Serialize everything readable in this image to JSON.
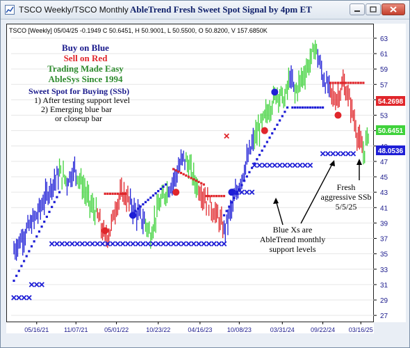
{
  "window": {
    "title": "TSCO Weekly/TSCO Monthly",
    "chart_title": "AbleTrend Fresh Sweet Spot Signal by 4pm ET"
  },
  "info_line": "TSCO [Weekly] 05/04/25 -0.1949 C 50.6451, H 50.9001, L 50.5500, O 50.8200, V 157.6850K",
  "legend": {
    "buy": "Buy on Blue",
    "sell": "Sell on Red",
    "easy": "Trading Made Easy",
    "since": "AbleSys Since 1994"
  },
  "ssb": {
    "title": "Sweet Spot for Buying (SSb)",
    "line1": "1) After testing support level",
    "line2": "2) Emerging blue bar",
    "line3": "or closeup bar"
  },
  "annotations": {
    "blue_x_1": "Blue Xs are",
    "blue_x_2": "AbleTrend monthly",
    "blue_x_3": "support levels",
    "fresh_1": "Fresh",
    "fresh_2": "aggressive SSb",
    "fresh_3": "5/5/25"
  },
  "price_labels": {
    "red": "54.2698",
    "green": "50.6451",
    "blue": "48.0536"
  },
  "colors": {
    "blue": "#1f1fd6",
    "red": "#e0262b",
    "green": "#3fd23b",
    "navy_text": "#1a1a8c",
    "dark_green_text": "#2e8b2e"
  },
  "chart_data": {
    "type": "candlestick",
    "ticker": "TSCO",
    "timeframe": "Weekly",
    "y_ticks": [
      27,
      29,
      31,
      33,
      35,
      37,
      39,
      41,
      43,
      45,
      47,
      49,
      51,
      53,
      55,
      57,
      59,
      61,
      63
    ],
    "ylim": [
      26.2,
      64.8
    ],
    "x_ticks": [
      "05/16/21",
      "11/07/21",
      "05/01/22",
      "10/23/22",
      "04/16/23",
      "10/08/23",
      "03/31/24",
      "09/22/24",
      "03/16/25"
    ],
    "last_close": 50.6451,
    "price_path": [
      [
        0,
        35.5
      ],
      [
        6,
        37
      ],
      [
        12,
        38.5
      ],
      [
        18,
        40
      ],
      [
        24,
        42
      ],
      [
        30,
        44
      ],
      [
        36,
        45.5
      ],
      [
        42,
        44.5
      ],
      [
        48,
        46
      ],
      [
        54,
        44
      ],
      [
        60,
        41.5
      ],
      [
        66,
        40
      ],
      [
        72,
        37
      ],
      [
        76,
        38
      ],
      [
        80,
        41
      ],
      [
        86,
        43
      ],
      [
        92,
        41.5
      ],
      [
        98,
        40
      ],
      [
        104,
        39
      ],
      [
        108,
        37.5
      ],
      [
        114,
        41
      ],
      [
        120,
        43
      ],
      [
        126,
        44.5
      ],
      [
        130,
        46
      ],
      [
        134,
        47.5
      ],
      [
        138,
        46.5
      ],
      [
        144,
        44
      ],
      [
        150,
        42.5
      ],
      [
        156,
        41
      ],
      [
        162,
        39.5
      ],
      [
        166,
        38
      ],
      [
        172,
        41
      ],
      [
        178,
        44
      ],
      [
        184,
        47
      ],
      [
        190,
        50
      ],
      [
        196,
        52
      ],
      [
        202,
        54
      ],
      [
        208,
        56
      ],
      [
        214,
        55
      ],
      [
        218,
        58
      ],
      [
        222,
        56
      ],
      [
        228,
        58
      ],
      [
        234,
        60
      ],
      [
        238,
        62
      ],
      [
        244,
        58
      ],
      [
        250,
        56
      ],
      [
        254,
        55
      ],
      [
        260,
        57
      ],
      [
        264,
        55.5
      ],
      [
        268,
        53
      ],
      [
        272,
        50
      ],
      [
        276,
        48
      ],
      [
        280,
        50.6
      ]
    ],
    "bar_colors": [
      [
        "blue",
        0,
        36
      ],
      [
        "green",
        36,
        42
      ],
      [
        "blue",
        42,
        50
      ],
      [
        "green",
        50,
        66
      ],
      [
        "red",
        66,
        92
      ],
      [
        "blue",
        92,
        104
      ],
      [
        "green",
        104,
        122
      ],
      [
        "blue",
        122,
        136
      ],
      [
        "green",
        136,
        146
      ],
      [
        "red",
        146,
        166
      ],
      [
        "blue",
        166,
        190
      ],
      [
        "green",
        190,
        218
      ],
      [
        "blue",
        218,
        222
      ],
      [
        "green",
        222,
        240
      ],
      [
        "blue",
        240,
        250
      ],
      [
        "red",
        250,
        276
      ],
      [
        "green",
        276,
        281
      ]
    ],
    "stop_dots": [
      {
        "color": "blue",
        "from": 0,
        "to": 36,
        "start": 31.5,
        "end": 43
      },
      {
        "color": "red",
        "from": 72,
        "to": 88,
        "start": 42.8,
        "end": 42.8
      },
      {
        "color": "blue",
        "from": 92,
        "to": 120,
        "start": 40,
        "end": 44
      },
      {
        "color": "red",
        "from": 126,
        "to": 150,
        "start": 46,
        "end": 44
      },
      {
        "color": "red",
        "from": 152,
        "to": 166,
        "start": 42.5,
        "end": 42.5
      },
      {
        "color": "blue",
        "from": 166,
        "to": 216,
        "start": 40,
        "end": 54
      },
      {
        "color": "blue",
        "from": 220,
        "to": 244,
        "start": 54,
        "end": 54
      },
      {
        "color": "red",
        "from": 250,
        "to": 276,
        "start": 57.2,
        "end": 57.2
      }
    ],
    "circles": [
      {
        "color": "red",
        "x": 72,
        "y": 38
      },
      {
        "color": "blue",
        "x": 94,
        "y": 40
      },
      {
        "color": "red",
        "x": 128,
        "y": 43
      },
      {
        "color": "blue",
        "x": 172,
        "y": 43
      },
      {
        "color": "red",
        "x": 198,
        "y": 51
      },
      {
        "color": "blue",
        "x": 206,
        "y": 56
      },
      {
        "color": "red",
        "x": 256,
        "y": 53
      }
    ],
    "support_x": [
      {
        "color": "blue",
        "from": 0,
        "to": 12,
        "y": 29.3
      },
      {
        "color": "blue",
        "from": 14,
        "to": 24,
        "y": 31
      },
      {
        "color": "blue",
        "from": 30,
        "to": 168,
        "y": 36.3
      },
      {
        "color": "blue",
        "from": 176,
        "to": 188,
        "y": 43
      },
      {
        "color": "blue",
        "from": 190,
        "to": 236,
        "y": 46.5
      },
      {
        "color": "blue",
        "from": 244,
        "to": 270,
        "y": 48
      },
      {
        "color": "red",
        "from": 168,
        "to": 168,
        "y": 50.3
      }
    ]
  }
}
